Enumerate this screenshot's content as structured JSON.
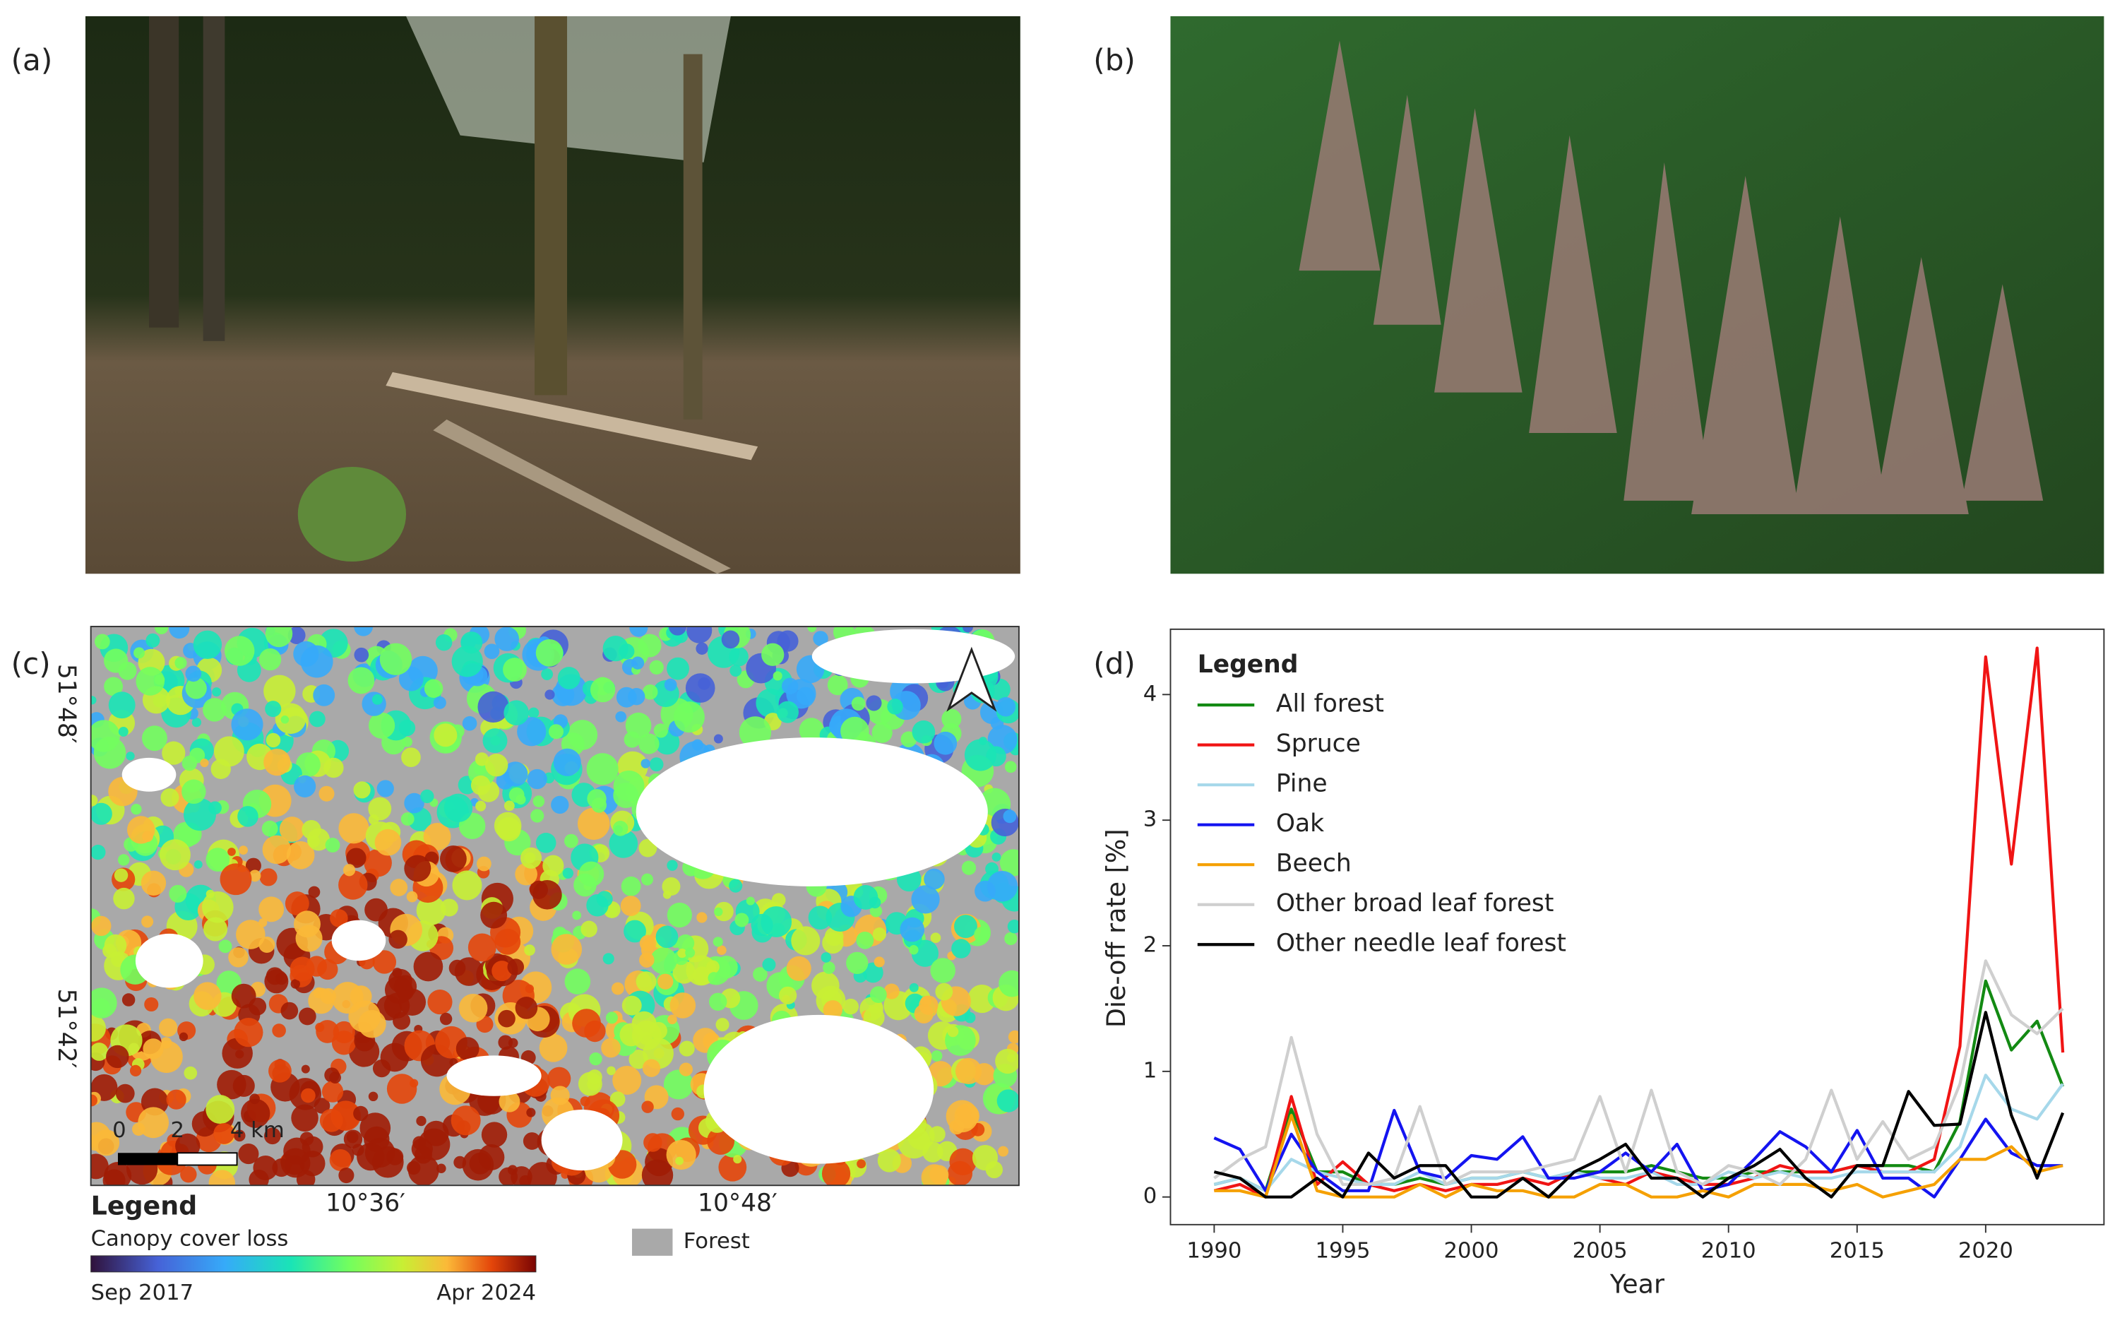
{
  "panel_labels": [
    "(a)",
    "(b)",
    "(c)",
    "(d)"
  ],
  "map": {
    "lat_labels": [
      "51°48′",
      "51°42′"
    ],
    "lon_labels": [
      "10°36′",
      "10°48′"
    ],
    "scale_labels": [
      "0",
      "2",
      "4 km"
    ],
    "legend_title": "Legend",
    "colorbar_title": "Canopy cover loss",
    "colorbar_start": "Sep 2017",
    "colorbar_end": "Apr 2024",
    "forest_label": "Forest"
  },
  "chart_data": {
    "type": "line",
    "x_label": "Year",
    "y_label": "Die-off rate [%]",
    "legend_title": "Legend",
    "legend": "upper left",
    "grid": false,
    "x": [
      1990,
      1991,
      1992,
      1993,
      1994,
      1995,
      1996,
      1997,
      1998,
      1999,
      2000,
      2001,
      2002,
      2003,
      2004,
      2005,
      2006,
      2007,
      2008,
      2009,
      2010,
      2011,
      2012,
      2013,
      2014,
      2015,
      2016,
      2017,
      2018,
      2019,
      2020,
      2021,
      2022,
      2023
    ],
    "xlim": [
      1988.3,
      2024.6
    ],
    "xticks": [
      1990,
      1995,
      2000,
      2005,
      2010,
      2015,
      2020
    ],
    "ylim": [
      -0.22,
      4.52
    ],
    "yticks": [
      0,
      1,
      2,
      3,
      4
    ],
    "series": [
      {
        "name": "All forest",
        "color": "#138a13",
        "values": [
          0.1,
          0.15,
          0.05,
          0.7,
          0.2,
          0.2,
          0.1,
          0.1,
          0.15,
          0.1,
          0.15,
          0.15,
          0.2,
          0.15,
          0.2,
          0.2,
          0.2,
          0.25,
          0.2,
          0.15,
          0.15,
          0.2,
          0.2,
          0.2,
          0.2,
          0.25,
          0.25,
          0.25,
          0.2,
          0.6,
          1.72,
          1.17,
          1.4,
          0.88
        ]
      },
      {
        "name": "Spruce",
        "color": "#f01414",
        "values": [
          0.05,
          0.1,
          0.0,
          0.8,
          0.1,
          0.28,
          0.1,
          0.05,
          0.1,
          0.05,
          0.1,
          0.1,
          0.15,
          0.1,
          0.2,
          0.15,
          0.1,
          0.2,
          0.15,
          0.1,
          0.1,
          0.15,
          0.25,
          0.2,
          0.2,
          0.25,
          0.2,
          0.2,
          0.3,
          1.2,
          4.3,
          2.65,
          4.37,
          1.15
        ]
      },
      {
        "name": "Pine",
        "color": "#a6d8ea",
        "values": [
          0.1,
          0.15,
          0.05,
          0.3,
          0.2,
          0.15,
          0.1,
          0.1,
          0.2,
          0.1,
          0.15,
          0.15,
          0.2,
          0.15,
          0.2,
          0.15,
          0.15,
          0.2,
          0.1,
          0.1,
          0.2,
          0.15,
          0.2,
          0.15,
          0.15,
          0.2,
          0.2,
          0.2,
          0.2,
          0.4,
          0.97,
          0.7,
          0.62,
          0.9
        ]
      },
      {
        "name": "Oak",
        "color": "#1414f0",
        "values": [
          0.47,
          0.38,
          0.05,
          0.5,
          0.2,
          0.05,
          0.05,
          0.69,
          0.2,
          0.15,
          0.33,
          0.3,
          0.48,
          0.15,
          0.15,
          0.2,
          0.35,
          0.2,
          0.42,
          0.05,
          0.1,
          0.3,
          0.52,
          0.4,
          0.2,
          0.53,
          0.15,
          0.15,
          0.0,
          0.3,
          0.62,
          0.35,
          0.25,
          0.25
        ]
      },
      {
        "name": "Beech",
        "color": "#f5a000",
        "values": [
          0.05,
          0.05,
          0.0,
          0.65,
          0.05,
          0.0,
          0.0,
          0.0,
          0.1,
          0.0,
          0.1,
          0.05,
          0.05,
          0.0,
          0.0,
          0.1,
          0.1,
          0.0,
          0.0,
          0.05,
          0.0,
          0.1,
          0.1,
          0.1,
          0.05,
          0.1,
          0.0,
          0.05,
          0.1,
          0.3,
          0.3,
          0.4,
          0.2,
          0.25
        ]
      },
      {
        "name": "Other broad leaf forest",
        "color": "#cfcfcf",
        "values": [
          0.15,
          0.3,
          0.4,
          1.27,
          0.5,
          0.1,
          0.1,
          0.15,
          0.72,
          0.1,
          0.2,
          0.2,
          0.2,
          0.25,
          0.3,
          0.8,
          0.2,
          0.85,
          0.2,
          0.1,
          0.25,
          0.2,
          0.1,
          0.3,
          0.85,
          0.3,
          0.6,
          0.3,
          0.4,
          0.9,
          1.88,
          1.45,
          1.3,
          1.5
        ]
      },
      {
        "name": "Other needle leaf forest",
        "color": "#000000",
        "values": [
          0.2,
          0.15,
          0.0,
          0.0,
          0.15,
          0.0,
          0.35,
          0.15,
          0.25,
          0.25,
          0.0,
          0.0,
          0.15,
          0.0,
          0.2,
          0.3,
          0.42,
          0.15,
          0.15,
          0.0,
          0.15,
          0.25,
          0.38,
          0.15,
          0.0,
          0.25,
          0.25,
          0.84,
          0.57,
          0.58,
          1.47,
          0.65,
          0.15,
          0.67
        ]
      }
    ]
  }
}
